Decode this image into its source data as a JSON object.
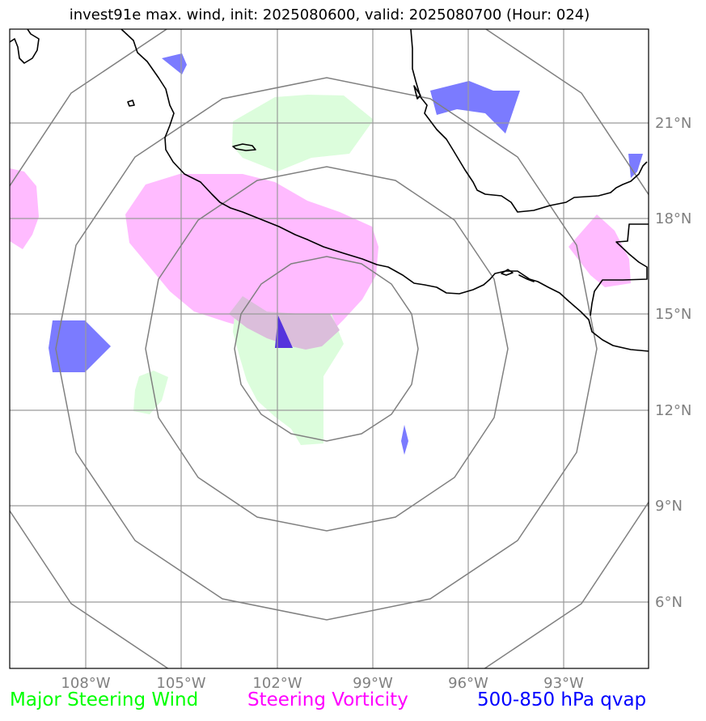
{
  "title": "invest91e max. wind, init: 2025080600, valid: 2025080700 (Hour: 024)",
  "lat_ticks": [
    "21°N",
    "18°N",
    "15°N",
    "12°N",
    "9°N",
    "6°N"
  ],
  "lon_ticks": [
    "108°W",
    "105°W",
    "102°W",
    "99°W",
    "96°W",
    "93°W"
  ],
  "legend": [
    {
      "label": "Major Steering Wind",
      "color": "#00ff00"
    },
    {
      "label": "Steering Vorticity",
      "color": "#ff00ff"
    },
    {
      "label": "500-850 hPa qvap",
      "color": "#0000ff"
    }
  ],
  "colors": {
    "steering_wind_fill": "#dcfddc",
    "vorticity_fill": "#ffbbff",
    "qvap_fill": "#7b7bff",
    "grid": "#999999",
    "range_rings": "#808080",
    "coastline": "#000000"
  }
}
